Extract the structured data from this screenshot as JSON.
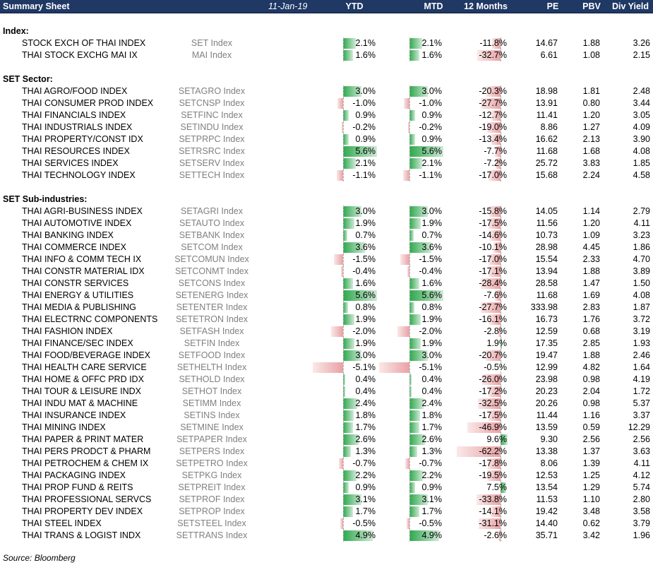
{
  "header": {
    "title": "Summary Sheet",
    "date": "11-Jan-19",
    "columns": [
      "YTD",
      "MTD",
      "12 Months",
      "PE",
      "PBV",
      "Div Yield"
    ]
  },
  "sections": [
    {
      "label": "Index:",
      "rows": [
        {
          "name": "STOCK EXCH OF THAI INDEX",
          "ticker": "SET Index",
          "ytd": "2.1%",
          "mtd": "2.1%",
          "m12": "-11.8%",
          "pe": "14.67",
          "pbv": "1.88",
          "dy": "3.26"
        },
        {
          "name": "THAI STOCK EXCHG MAI IX",
          "ticker": "MAI Index",
          "ytd": "1.6%",
          "mtd": "1.6%",
          "m12": "-32.7%",
          "pe": "6.61",
          "pbv": "1.08",
          "dy": "2.15"
        }
      ]
    },
    {
      "label": "SET Sector:",
      "rows": [
        {
          "name": "THAI AGRO/FOOD INDEX",
          "ticker": "SETAGRO Index",
          "ytd": "3.0%",
          "mtd": "3.0%",
          "m12": "-20.3%",
          "pe": "18.98",
          "pbv": "1.81",
          "dy": "2.48"
        },
        {
          "name": "THAI CONSUMER PROD INDEX",
          "ticker": "SETCNSP Index",
          "ytd": "-1.0%",
          "mtd": "-1.0%",
          "m12": "-27.7%",
          "pe": "13.91",
          "pbv": "0.80",
          "dy": "3.44"
        },
        {
          "name": "THAI FINANCIALS INDEX",
          "ticker": "SETFINC Index",
          "ytd": "0.9%",
          "mtd": "0.9%",
          "m12": "-12.7%",
          "pe": "11.41",
          "pbv": "1.20",
          "dy": "3.05"
        },
        {
          "name": "THAI INDUSTRIALS INDEX",
          "ticker": "SETINDU Index",
          "ytd": "-0.2%",
          "mtd": "-0.2%",
          "m12": "-19.0%",
          "pe": "8.86",
          "pbv": "1.27",
          "dy": "4.09"
        },
        {
          "name": "THAI PROPERTY/CONST IDX",
          "ticker": "SETPRPC Index",
          "ytd": "0.9%",
          "mtd": "0.9%",
          "m12": "-13.4%",
          "pe": "16.62",
          "pbv": "2.13",
          "dy": "3.90"
        },
        {
          "name": "THAI RESOURCES INDEX",
          "ticker": "SETRSRC Index",
          "ytd": "5.6%",
          "mtd": "5.6%",
          "m12": "-7.7%",
          "pe": "11.68",
          "pbv": "1.68",
          "dy": "4.08"
        },
        {
          "name": "THAI SERVICES INDEX",
          "ticker": "SETSERV Index",
          "ytd": "2.1%",
          "mtd": "2.1%",
          "m12": "-7.2%",
          "pe": "25.72",
          "pbv": "3.83",
          "dy": "1.85"
        },
        {
          "name": "THAI TECHNOLOGY INDEX",
          "ticker": "SETTECH Index",
          "ytd": "-1.1%",
          "mtd": "-1.1%",
          "m12": "-17.0%",
          "pe": "15.68",
          "pbv": "2.24",
          "dy": "4.58"
        }
      ]
    },
    {
      "label": "SET Sub-industries:",
      "rows": [
        {
          "name": "THAI AGRI-BUSINESS INDEX",
          "ticker": "SETAGRI Index",
          "ytd": "3.0%",
          "mtd": "3.0%",
          "m12": "-15.8%",
          "pe": "14.05",
          "pbv": "1.14",
          "dy": "2.79"
        },
        {
          "name": "THAI AUTOMOTIVE INDEX",
          "ticker": "SETAUTO Index",
          "ytd": "1.9%",
          "mtd": "1.9%",
          "m12": "-17.5%",
          "pe": "11.56",
          "pbv": "1.20",
          "dy": "4.11"
        },
        {
          "name": "THAI BANKING INDEX",
          "ticker": "SETBANK Index",
          "ytd": "0.7%",
          "mtd": "0.7%",
          "m12": "-14.6%",
          "pe": "10.73",
          "pbv": "1.09",
          "dy": "3.23"
        },
        {
          "name": "THAI COMMERCE INDEX",
          "ticker": "SETCOM Index",
          "ytd": "3.6%",
          "mtd": "3.6%",
          "m12": "-10.1%",
          "pe": "28.98",
          "pbv": "4.45",
          "dy": "1.86"
        },
        {
          "name": "THAI INFO & COMM TECH IX",
          "ticker": "SETCOMUN Index",
          "ytd": "-1.5%",
          "mtd": "-1.5%",
          "m12": "-17.0%",
          "pe": "15.54",
          "pbv": "2.33",
          "dy": "4.70"
        },
        {
          "name": "THAI CONSTR MATERIAL IDX",
          "ticker": "SETCONMT Index",
          "ytd": "-0.4%",
          "mtd": "-0.4%",
          "m12": "-17.1%",
          "pe": "13.94",
          "pbv": "1.88",
          "dy": "3.89"
        },
        {
          "name": "THAI CONSTR SERVICES",
          "ticker": "SETCONS Index",
          "ytd": "1.6%",
          "mtd": "1.6%",
          "m12": "-28.4%",
          "pe": "28.58",
          "pbv": "1.47",
          "dy": "1.50"
        },
        {
          "name": "THAI ENERGY & UTILITIES",
          "ticker": "SETENERG Index",
          "ytd": "5.6%",
          "mtd": "5.6%",
          "m12": "-7.6%",
          "pe": "11.68",
          "pbv": "1.69",
          "dy": "4.08"
        },
        {
          "name": "THAI MEDIA & PUBLISHING",
          "ticker": "SETENTER Index",
          "ytd": "0.8%",
          "mtd": "0.8%",
          "m12": "-27.7%",
          "pe": "333.98",
          "pbv": "2.83",
          "dy": "1.87"
        },
        {
          "name": "THAI ELECTRNC COMPONENTS",
          "ticker": "SETETRON Index",
          "ytd": "1.9%",
          "mtd": "1.9%",
          "m12": "-16.1%",
          "pe": "16.73",
          "pbv": "1.76",
          "dy": "3.72"
        },
        {
          "name": "THAI FASHION INDEX",
          "ticker": "SETFASH Index",
          "ytd": "-2.0%",
          "mtd": "-2.0%",
          "m12": "-2.8%",
          "pe": "12.59",
          "pbv": "0.68",
          "dy": "3.19"
        },
        {
          "name": "THAI FINANCE/SEC INDEX",
          "ticker": "SETFIN Index",
          "ytd": "1.9%",
          "mtd": "1.9%",
          "m12": "1.9%",
          "pe": "17.35",
          "pbv": "2.85",
          "dy": "1.93"
        },
        {
          "name": "THAI FOOD/BEVERAGE INDEX",
          "ticker": "SETFOOD Index",
          "ytd": "3.0%",
          "mtd": "3.0%",
          "m12": "-20.7%",
          "pe": "19.47",
          "pbv": "1.88",
          "dy": "2.46"
        },
        {
          "name": "THAI HEALTH CARE SERVICE",
          "ticker": "SETHELTH Index",
          "ytd": "-5.1%",
          "mtd": "-5.1%",
          "m12": "-0.5%",
          "pe": "12.99",
          "pbv": "4.82",
          "dy": "1.64"
        },
        {
          "name": "THAI HOME & OFFC PRD IDX",
          "ticker": "SETHOLD Index",
          "ytd": "0.4%",
          "mtd": "0.4%",
          "m12": "-26.0%",
          "pe": "23.98",
          "pbv": "0.98",
          "dy": "4.19"
        },
        {
          "name": "THAI TOUR & LEISURE INDX",
          "ticker": "SETHOT Index",
          "ytd": "0.4%",
          "mtd": "0.4%",
          "m12": "-17.2%",
          "pe": "20.23",
          "pbv": "2.04",
          "dy": "1.72"
        },
        {
          "name": "THAI INDU MAT & MACHINE",
          "ticker": "SETIMM Index",
          "ytd": "2.4%",
          "mtd": "2.4%",
          "m12": "-32.5%",
          "pe": "20.26",
          "pbv": "0.98",
          "dy": "5.37"
        },
        {
          "name": "THAI INSURANCE INDEX",
          "ticker": "SETINS Index",
          "ytd": "1.8%",
          "mtd": "1.8%",
          "m12": "-17.5%",
          "pe": "11.44",
          "pbv": "1.16",
          "dy": "3.37"
        },
        {
          "name": "THAI MINING INDEX",
          "ticker": "SETMINE Index",
          "ytd": "1.7%",
          "mtd": "1.7%",
          "m12": "-46.9%",
          "pe": "13.59",
          "pbv": "0.59",
          "dy": "12.29"
        },
        {
          "name": "THAI PAPER & PRINT MATER",
          "ticker": "SETPAPER Index",
          "ytd": "2.6%",
          "mtd": "2.6%",
          "m12": "9.6%",
          "pe": "9.30",
          "pbv": "2.56",
          "dy": "2.56"
        },
        {
          "name": "THAI PERS PRODCT & PHARM",
          "ticker": "SETPERS Index",
          "ytd": "1.3%",
          "mtd": "1.3%",
          "m12": "-62.2%",
          "pe": "13.38",
          "pbv": "1.37",
          "dy": "3.63"
        },
        {
          "name": "THAI PETROCHEM & CHEM IX",
          "ticker": "SETPETRO Index",
          "ytd": "-0.7%",
          "mtd": "-0.7%",
          "m12": "-17.8%",
          "pe": "8.06",
          "pbv": "1.39",
          "dy": "4.11"
        },
        {
          "name": "THAI PACKAGING INDEX",
          "ticker": "SETPKG Index",
          "ytd": "2.2%",
          "mtd": "2.2%",
          "m12": "-19.5%",
          "pe": "12.53",
          "pbv": "1.25",
          "dy": "4.12"
        },
        {
          "name": "THAI PROP FUND & REITS",
          "ticker": "SETPREIT Index",
          "ytd": "0.9%",
          "mtd": "0.9%",
          "m12": "7.5%",
          "pe": "13.54",
          "pbv": "1.29",
          "dy": "5.74"
        },
        {
          "name": "THAI PROFESSIONAL SERVCS",
          "ticker": "SETPROF Index",
          "ytd": "3.1%",
          "mtd": "3.1%",
          "m12": "-33.8%",
          "pe": "11.53",
          "pbv": "1.10",
          "dy": "2.80"
        },
        {
          "name": "THAI PROPERTY DEV INDEX",
          "ticker": "SETPROP Index",
          "ytd": "1.7%",
          "mtd": "1.7%",
          "m12": "-14.1%",
          "pe": "19.42",
          "pbv": "3.48",
          "dy": "3.58"
        },
        {
          "name": "THAI STEEL INDEX",
          "ticker": "SETSTEEL Index",
          "ytd": "-0.5%",
          "mtd": "-0.5%",
          "m12": "-31.1%",
          "pe": "14.40",
          "pbv": "0.62",
          "dy": "3.79"
        },
        {
          "name": "THAI TRANS & LOGIST INDX",
          "ticker": "SETTRANS Index",
          "ytd": "4.9%",
          "mtd": "4.9%",
          "m12": "-2.6%",
          "pe": "35.71",
          "pbv": "3.42",
          "dy": "1.96"
        }
      ]
    }
  ],
  "footer": {
    "source": "Source: Bloomberg"
  },
  "colors": {
    "header_bg": "#1f3864",
    "positive_bar": "#2ea84d",
    "negative_bar": "#e7a2a4"
  }
}
